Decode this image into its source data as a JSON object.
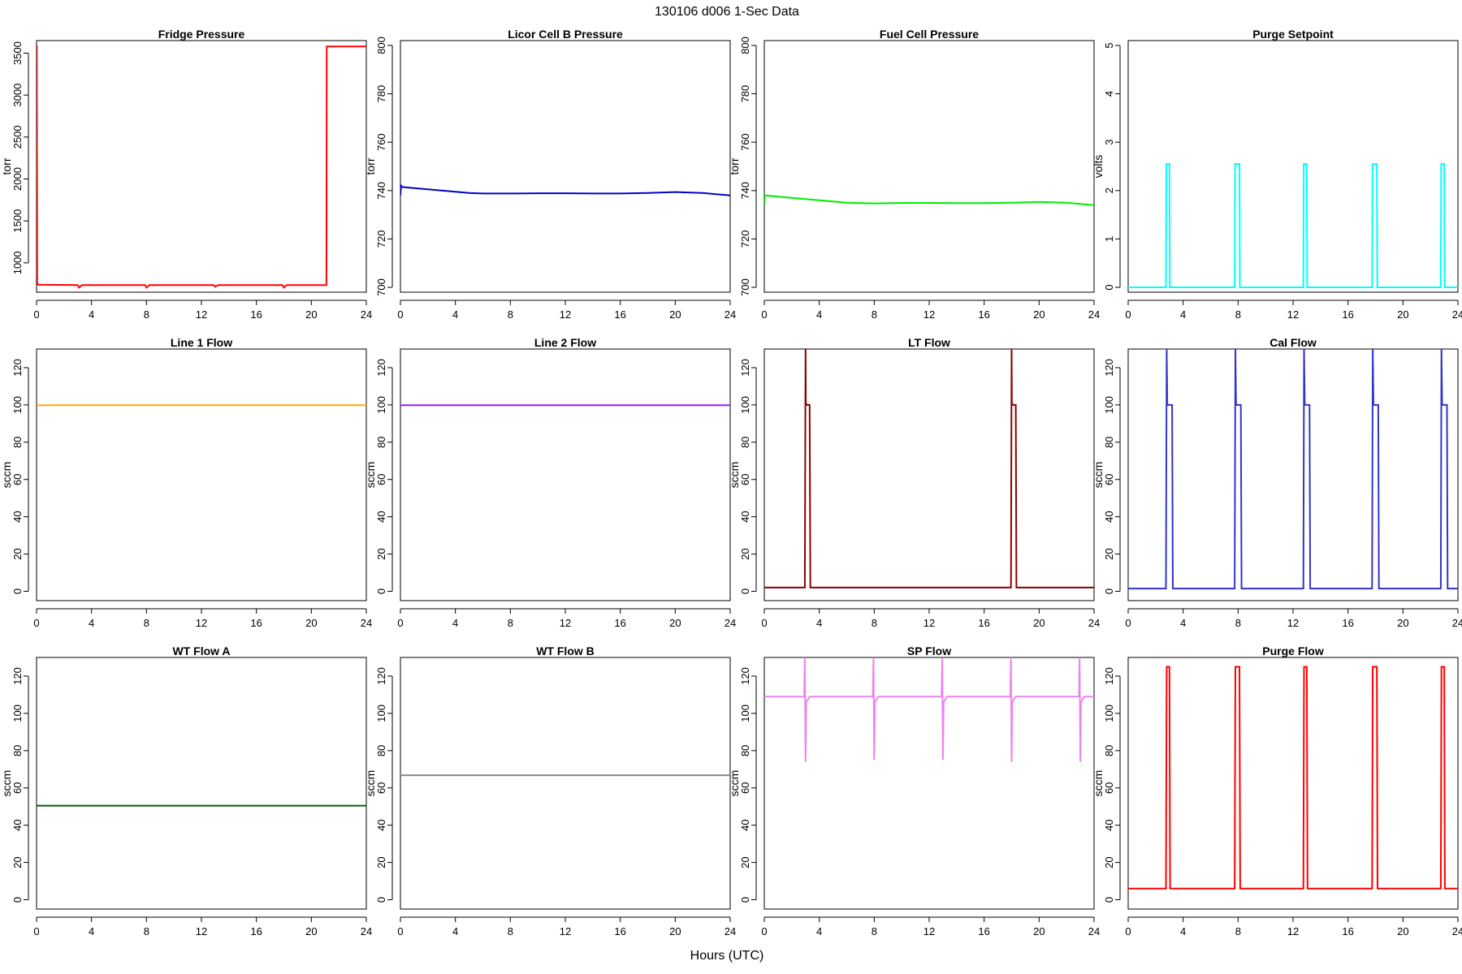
{
  "figure": {
    "title": "130106   d006   1-Sec Data",
    "xlabel": "Hours (UTC)"
  },
  "chart_data": [
    {
      "type": "line",
      "title": "Fridge Pressure",
      "ylabel": "torr",
      "color": "#ff0000",
      "xlim": [
        0,
        24
      ],
      "ylim": [
        650,
        3650
      ],
      "xticks": [
        0,
        4,
        8,
        12,
        16,
        20,
        24
      ],
      "yticks": [
        1000,
        1500,
        2000,
        2500,
        3000,
        3500
      ],
      "series": [
        {
          "x": [
            0,
            0.02,
            0.05,
            0.1,
            3,
            3.1,
            3.3,
            7.9,
            8,
            8.2,
            12.9,
            13,
            13.2,
            17.9,
            18,
            18.2,
            21.1,
            21.12,
            21.2,
            22,
            24
          ],
          "y": [
            3580,
            3580,
            760,
            740,
            735,
            705,
            735,
            735,
            705,
            735,
            735,
            715,
            735,
            735,
            705,
            735,
            735,
            3580,
            3580,
            3580,
            3580
          ]
        }
      ]
    },
    {
      "type": "line",
      "title": "Licor Cell B Pressure",
      "ylabel": "torr",
      "color": "#0000cc",
      "xlim": [
        0,
        24
      ],
      "ylim": [
        698,
        802
      ],
      "xticks": [
        0,
        4,
        8,
        12,
        16,
        20,
        24
      ],
      "yticks": [
        700,
        720,
        740,
        760,
        780,
        800
      ],
      "series": [
        {
          "x": [
            0,
            0.05,
            0.1,
            1,
            2,
            3,
            4,
            5,
            6,
            8,
            10,
            12,
            14,
            16,
            18,
            20,
            22,
            24
          ],
          "y": [
            738,
            742,
            741.5,
            741,
            740.5,
            740,
            739.5,
            739,
            738.8,
            738.8,
            738.9,
            738.9,
            738.8,
            738.8,
            739,
            739.4,
            739,
            738
          ]
        }
      ]
    },
    {
      "type": "line",
      "title": "Fuel Cell Pressure",
      "ylabel": "torr",
      "color": "#00ee00",
      "xlim": [
        0,
        24
      ],
      "ylim": [
        698,
        802
      ],
      "xticks": [
        0,
        4,
        8,
        12,
        16,
        20,
        24
      ],
      "yticks": [
        700,
        720,
        740,
        760,
        780,
        800
      ],
      "series": [
        {
          "x": [
            0,
            0.05,
            0.1,
            1,
            2,
            3,
            4,
            5,
            6,
            8,
            10,
            12,
            14,
            16,
            18,
            20,
            22,
            24
          ],
          "y": [
            734,
            738,
            738,
            737.5,
            737,
            736.5,
            736,
            735.5,
            735,
            734.7,
            734.9,
            734.9,
            734.8,
            734.8,
            735,
            735.3,
            735,
            734
          ]
        }
      ]
    },
    {
      "type": "line",
      "title": "Purge Setpoint",
      "ylabel": "volts",
      "color": "#00ffff",
      "xlim": [
        0,
        24
      ],
      "ylim": [
        -0.1,
        5.1
      ],
      "xticks": [
        0,
        4,
        8,
        12,
        16,
        20,
        24
      ],
      "yticks": [
        0,
        1,
        2,
        3,
        4,
        5
      ],
      "series": [
        {
          "x": [
            0,
            2.75,
            2.78,
            3.0,
            3.03,
            7.75,
            7.78,
            8.1,
            8.13,
            12.75,
            12.78,
            13.0,
            13.03,
            17.75,
            17.78,
            18.1,
            18.13,
            22.75,
            22.78,
            23.0,
            23.03,
            24
          ],
          "y": [
            0,
            0,
            2.55,
            2.55,
            0,
            0,
            2.55,
            2.55,
            0,
            0,
            2.55,
            2.55,
            0,
            0,
            2.55,
            2.55,
            0,
            0,
            2.55,
            2.55,
            0,
            0
          ]
        }
      ]
    },
    {
      "type": "line",
      "title": "Line 1 Flow",
      "ylabel": "sccm",
      "color": "#ffaa00",
      "xlim": [
        0,
        24
      ],
      "ylim": [
        -5,
        130
      ],
      "xticks": [
        0,
        4,
        8,
        12,
        16,
        20,
        24
      ],
      "yticks": [
        0,
        20,
        40,
        60,
        80,
        100,
        120
      ],
      "series": [
        {
          "x": [
            0,
            24
          ],
          "y": [
            99.8,
            99.8
          ]
        }
      ]
    },
    {
      "type": "line",
      "title": "Line 2 Flow",
      "ylabel": "sccm",
      "color": "#9a1ff0",
      "xlim": [
        0,
        24
      ],
      "ylim": [
        -5,
        130
      ],
      "xticks": [
        0,
        4,
        8,
        12,
        16,
        20,
        24
      ],
      "yticks": [
        0,
        20,
        40,
        60,
        80,
        100,
        120
      ],
      "series": [
        {
          "x": [
            0,
            24
          ],
          "y": [
            99.8,
            99.8
          ]
        }
      ]
    },
    {
      "type": "line",
      "title": "LT Flow",
      "ylabel": "sccm",
      "color": "#8b0000",
      "xlim": [
        0,
        24
      ],
      "ylim": [
        -5,
        130
      ],
      "xticks": [
        0,
        4,
        8,
        12,
        16,
        20,
        24
      ],
      "yticks": [
        0,
        20,
        40,
        60,
        80,
        100,
        120
      ],
      "series": [
        {
          "x": [
            0,
            2.95,
            3.0,
            3.02,
            3.1,
            3.3,
            3.35,
            17.95,
            18.0,
            18.02,
            18.1,
            18.3,
            18.35,
            24
          ],
          "y": [
            2,
            2,
            130,
            101,
            100,
            100,
            2,
            2,
            130,
            101,
            100,
            100,
            2,
            2
          ]
        }
      ]
    },
    {
      "type": "line",
      "title": "Cal Flow",
      "ylabel": "sccm",
      "color": "#3333cc",
      "xlim": [
        0,
        24
      ],
      "ylim": [
        -5,
        130
      ],
      "xticks": [
        0,
        4,
        8,
        12,
        16,
        20,
        24
      ],
      "yticks": [
        0,
        20,
        40,
        60,
        80,
        100,
        120
      ],
      "series": [
        {
          "x": [
            0,
            2.75,
            2.8,
            2.85,
            3.2,
            3.25,
            7.75,
            7.8,
            7.85,
            8.2,
            8.25,
            12.75,
            12.8,
            12.85,
            13.2,
            13.25,
            17.75,
            17.8,
            17.85,
            18.2,
            18.25,
            22.75,
            22.8,
            22.85,
            23.2,
            23.25,
            24
          ],
          "y": [
            1.5,
            1.5,
            130,
            100,
            100,
            1.5,
            1.5,
            130,
            100,
            100,
            1.5,
            1.5,
            130,
            100,
            100,
            1.5,
            1.5,
            130,
            100,
            100,
            1.5,
            1.5,
            130,
            100,
            100,
            1.5,
            1.5
          ]
        }
      ]
    },
    {
      "type": "line",
      "title": "WT Flow A",
      "ylabel": "sccm",
      "color": "#006400",
      "xlim": [
        0,
        24
      ],
      "ylim": [
        -5,
        130
      ],
      "xticks": [
        0,
        4,
        8,
        12,
        16,
        20,
        24
      ],
      "yticks": [
        0,
        20,
        40,
        60,
        80,
        100,
        120
      ],
      "series": [
        {
          "x": [
            0,
            24
          ],
          "y": [
            50.5,
            50.5
          ]
        }
      ]
    },
    {
      "type": "line",
      "title": "WT Flow B",
      "ylabel": "sccm",
      "color": "#888888",
      "xlim": [
        0,
        24
      ],
      "ylim": [
        -5,
        130
      ],
      "xticks": [
        0,
        4,
        8,
        12,
        16,
        20,
        24
      ],
      "yticks": [
        0,
        20,
        40,
        60,
        80,
        100,
        120
      ],
      "series": [
        {
          "x": [
            0,
            24
          ],
          "y": [
            66.8,
            66.8
          ]
        }
      ]
    },
    {
      "type": "line",
      "title": "SP Flow",
      "ylabel": "sccm",
      "color": "#ee82ee",
      "xlim": [
        0,
        24
      ],
      "ylim": [
        -5,
        130
      ],
      "xticks": [
        0,
        4,
        8,
        12,
        16,
        20,
        24
      ],
      "yticks": [
        0,
        20,
        40,
        60,
        80,
        100,
        120
      ],
      "series": [
        {
          "x": [
            0,
            2.9,
            2.95,
            3.0,
            3.05,
            3.3,
            7.9,
            7.95,
            8.0,
            8.05,
            8.3,
            12.9,
            12.95,
            13.0,
            13.05,
            13.3,
            17.9,
            17.95,
            18.0,
            18.05,
            18.3,
            22.9,
            22.95,
            23.0,
            23.05,
            23.3,
            24
          ],
          "y": [
            109,
            109,
            130,
            74,
            106,
            109,
            109,
            130,
            75,
            106,
            109,
            109,
            130,
            75,
            106,
            109,
            109,
            130,
            74,
            106,
            109,
            109,
            130,
            74,
            106,
            109,
            109
          ]
        }
      ]
    },
    {
      "type": "line",
      "title": "Purge Flow",
      "ylabel": "sccm",
      "color": "#ff0000",
      "xlim": [
        0,
        24
      ],
      "ylim": [
        -5,
        130
      ],
      "xticks": [
        0,
        4,
        8,
        12,
        16,
        20,
        24
      ],
      "yticks": [
        0,
        20,
        40,
        60,
        80,
        100,
        120
      ],
      "series": [
        {
          "x": [
            0,
            2.75,
            2.8,
            3.0,
            3.05,
            7.75,
            7.8,
            8.1,
            8.15,
            12.75,
            12.8,
            13.0,
            13.05,
            17.75,
            17.8,
            18.1,
            18.15,
            22.75,
            22.8,
            23.0,
            23.05,
            24
          ],
          "y": [
            6,
            6,
            125,
            125,
            6,
            6,
            125,
            125,
            6,
            6,
            125,
            125,
            6,
            6,
            125,
            125,
            6,
            6,
            125,
            125,
            6,
            6
          ]
        }
      ]
    }
  ]
}
